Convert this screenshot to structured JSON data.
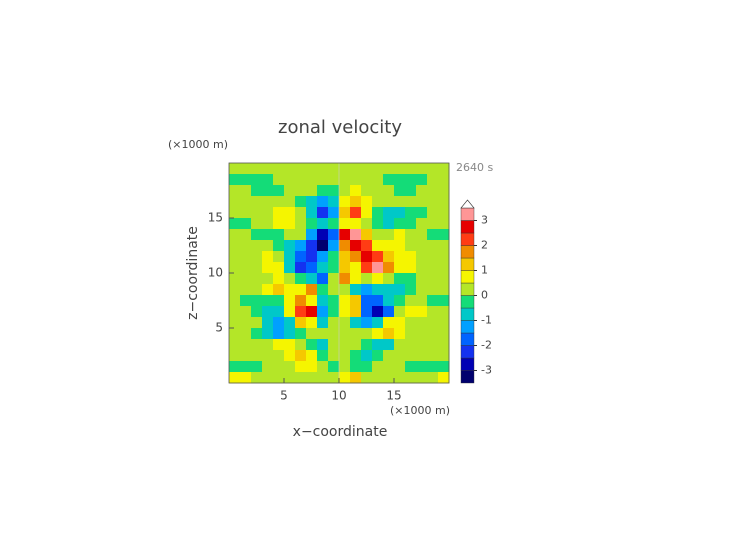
{
  "chart_data": {
    "type": "contour",
    "title": "zonal velocity",
    "x_label": "x−coordinate",
    "y_label": "z−coordinate",
    "x_unit": "(×1000 m)",
    "y_unit": "(×1000 m)",
    "time_label": "2640 s",
    "xlim": [
      0,
      20
    ],
    "ylim": [
      0,
      20
    ],
    "xticks": [
      5,
      10,
      15
    ],
    "yticks": [
      5,
      10,
      15
    ],
    "x": [
      0.5,
      1.5,
      2.5,
      3.5,
      4.5,
      5.5,
      6.5,
      7.5,
      8.5,
      9.5,
      10.5,
      11.5,
      12.5,
      13.5,
      14.5,
      15.5,
      16.5,
      17.5,
      18.5,
      19.5
    ],
    "z": [
      19.5,
      18.5,
      17.5,
      16.5,
      15.5,
      14.5,
      13.5,
      12.5,
      11.5,
      10.5,
      9.5,
      8.5,
      7.5,
      6.5,
      5.5,
      4.5,
      3.5,
      2.5,
      1.5,
      0.5
    ],
    "values": [
      [
        0.2,
        0.2,
        0.2,
        0.2,
        0.2,
        0.2,
        0.2,
        0.2,
        0.2,
        0.2,
        0.2,
        0.2,
        0.2,
        0.2,
        0.2,
        0.2,
        0.2,
        0.2,
        0.2,
        0.2
      ],
      [
        -0.2,
        -0.2,
        -0.2,
        -0.2,
        0.2,
        0.2,
        0.2,
        0.2,
        0.2,
        0.2,
        0.2,
        0.2,
        0.2,
        0.2,
        -0.2,
        -0.2,
        -0.2,
        -0.2,
        0.2,
        0.2
      ],
      [
        0.2,
        0.2,
        -0.2,
        -0.2,
        -0.2,
        0.2,
        0.2,
        0.2,
        -0.2,
        -0.2,
        0.2,
        0.7,
        0.2,
        0.2,
        0.2,
        -0.2,
        -0.2,
        0.2,
        0.2,
        0.2
      ],
      [
        0.2,
        0.2,
        0.2,
        0.2,
        0.2,
        0.2,
        -0.2,
        -0.7,
        -1.2,
        -0.7,
        0.7,
        1.2,
        0.7,
        0.2,
        0.2,
        0.2,
        0.2,
        0.2,
        0.2,
        0.2
      ],
      [
        0.2,
        0.2,
        0.2,
        0.2,
        0.7,
        0.7,
        0.2,
        -0.7,
        -2.2,
        -1.2,
        1.2,
        2.2,
        0.7,
        -0.2,
        -0.7,
        -0.7,
        -0.2,
        -0.2,
        0.2,
        0.2
      ],
      [
        -0.2,
        -0.2,
        0.2,
        0.2,
        0.7,
        0.7,
        0.2,
        -0.2,
        -0.7,
        -0.2,
        0.7,
        0.7,
        0.2,
        -0.2,
        -0.7,
        -0.2,
        -0.2,
        0.2,
        0.2,
        0.2
      ],
      [
        0.2,
        0.2,
        -0.2,
        -0.2,
        -0.2,
        0.2,
        0.2,
        -1.2,
        -2.7,
        -1.7,
        2.7,
        3.2,
        1.2,
        0.2,
        0.2,
        0.7,
        0.2,
        0.2,
        -0.2,
        -0.2
      ],
      [
        0.2,
        0.2,
        0.2,
        0.2,
        -0.2,
        -0.7,
        -1.2,
        -2.2,
        -3.2,
        -1.2,
        1.7,
        2.7,
        2.2,
        0.7,
        0.7,
        0.7,
        0.2,
        0.2,
        0.2,
        0.2
      ],
      [
        0.2,
        0.2,
        0.2,
        0.7,
        0.2,
        -0.7,
        -1.7,
        -2.2,
        -1.2,
        -0.2,
        1.2,
        1.7,
        2.7,
        2.2,
        1.2,
        0.7,
        0.7,
        0.2,
        0.2,
        0.2
      ],
      [
        0.2,
        0.2,
        0.2,
        0.7,
        0.7,
        -0.7,
        -2.2,
        -1.7,
        -0.7,
        -0.2,
        1.2,
        0.7,
        2.2,
        3.2,
        1.7,
        0.7,
        0.7,
        0.2,
        0.2,
        0.2
      ],
      [
        0.2,
        0.2,
        0.2,
        0.2,
        0.7,
        0.2,
        -0.2,
        -0.7,
        -1.7,
        0.2,
        1.7,
        0.7,
        0.2,
        0.7,
        0.2,
        -0.2,
        -0.2,
        0.2,
        0.2,
        0.2
      ],
      [
        0.2,
        0.2,
        0.2,
        0.7,
        1.2,
        0.7,
        0.7,
        1.7,
        -0.2,
        0.2,
        0.2,
        -0.7,
        -1.2,
        -0.7,
        -0.7,
        -0.7,
        -0.2,
        0.2,
        0.2,
        0.2
      ],
      [
        0.2,
        -0.2,
        -0.2,
        -0.2,
        -0.2,
        0.7,
        1.7,
        0.7,
        -0.7,
        -0.2,
        0.7,
        1.2,
        -1.7,
        -1.7,
        -0.7,
        -0.2,
        0.2,
        0.2,
        -0.2,
        -0.2
      ],
      [
        0.2,
        0.2,
        -0.2,
        -0.7,
        -0.7,
        0.7,
        2.2,
        2.7,
        -1.2,
        -0.2,
        0.7,
        1.2,
        -1.7,
        -2.7,
        -1.7,
        0.2,
        0.7,
        0.7,
        0.2,
        0.2
      ],
      [
        0.2,
        0.2,
        0.2,
        -0.7,
        -1.2,
        -0.7,
        1.2,
        0.7,
        -0.7,
        0.2,
        0.2,
        -0.7,
        -1.2,
        -0.7,
        0.7,
        0.7,
        0.2,
        0.2,
        0.2,
        0.2
      ],
      [
        0.2,
        0.2,
        -0.2,
        -0.7,
        -1.2,
        -0.7,
        -0.2,
        0.2,
        0.2,
        0.2,
        0.2,
        0.2,
        0.2,
        0.7,
        1.2,
        0.7,
        0.2,
        0.2,
        0.2,
        0.2
      ],
      [
        0.2,
        0.2,
        0.2,
        0.2,
        0.7,
        0.7,
        0.2,
        -0.2,
        -0.7,
        0.2,
        0.2,
        0.2,
        -0.2,
        -0.7,
        -0.7,
        0.2,
        0.2,
        0.2,
        0.2,
        0.2
      ],
      [
        0.2,
        0.2,
        0.2,
        0.2,
        0.2,
        0.7,
        1.2,
        0.7,
        -0.2,
        0.2,
        0.2,
        -0.2,
        -0.7,
        -0.2,
        0.2,
        0.2,
        0.2,
        0.2,
        0.2,
        0.2
      ],
      [
        -0.2,
        -0.2,
        -0.2,
        0.2,
        0.2,
        0.2,
        0.7,
        0.7,
        0.2,
        -0.2,
        0.2,
        -0.2,
        -0.2,
        0.2,
        0.2,
        0.2,
        -0.2,
        -0.2,
        -0.2,
        -0.2
      ],
      [
        0.7,
        0.7,
        0.2,
        0.2,
        0.2,
        0.2,
        0.2,
        0.2,
        0.2,
        0.2,
        0.7,
        1.2,
        0.2,
        0.2,
        0.2,
        0.2,
        0.2,
        0.2,
        0.2,
        0.7
      ]
    ],
    "levels": [
      -3.5,
      -3,
      -2.5,
      -2,
      -1.5,
      -1,
      -0.5,
      0,
      0.5,
      1,
      1.5,
      2,
      2.5,
      3,
      3.5
    ],
    "colors": [
      "#00006e",
      "#0000b4",
      "#1432f0",
      "#0064ff",
      "#00a0ff",
      "#00c8c8",
      "#14dc78",
      "#b4e628",
      "#f5f500",
      "#f5c800",
      "#f08c00",
      "#ff3c14",
      "#e60000",
      "#ff9696",
      "#ffc8c8"
    ],
    "over_color": "#ffffff",
    "colorbar_ticks": [
      -3,
      -2,
      -1,
      0,
      1,
      2,
      3
    ]
  }
}
